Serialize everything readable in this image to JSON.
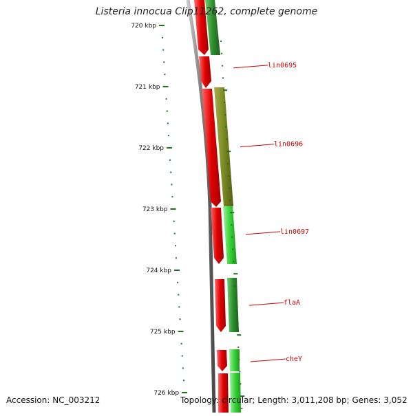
{
  "header": {
    "title": "Listeria innocua Clip11262, complete genome"
  },
  "footer": {
    "accession": "Accession: NC_003212",
    "summary": "Topology: circular; Length: 3,011,208 bp; Genes: 3,052"
  },
  "axis": {
    "unit": "kbp",
    "ticks": [
      {
        "value": 720,
        "label": "720 kbp"
      },
      {
        "value": 721,
        "label": "721 kbp"
      },
      {
        "value": 722,
        "label": "722 kbp"
      },
      {
        "value": 723,
        "label": "723 kbp"
      },
      {
        "value": 724,
        "label": "724 kbp"
      },
      {
        "value": 725,
        "label": "725 kbp"
      },
      {
        "value": 726,
        "label": "726 kbp"
      }
    ]
  },
  "genes": [
    {
      "name": "lin0695",
      "label_kbp": 720.65
    },
    {
      "name": "lin0696",
      "label_kbp": 721.94
    },
    {
      "name": "lin0697",
      "label_kbp": 723.37
    },
    {
      "name": "flaA",
      "label_kbp": 724.53
    },
    {
      "name": "cheY",
      "label_kbp": 725.45
    }
  ],
  "colors": {
    "frame_red": "#e00000",
    "frame_green": "#2e9e2e",
    "frame_olive": "#7a8a22",
    "frame_lightgreen": "#38d238",
    "backbone": "#8a8a8a",
    "tick": "#1f6f1f",
    "label": "#cc0000"
  }
}
